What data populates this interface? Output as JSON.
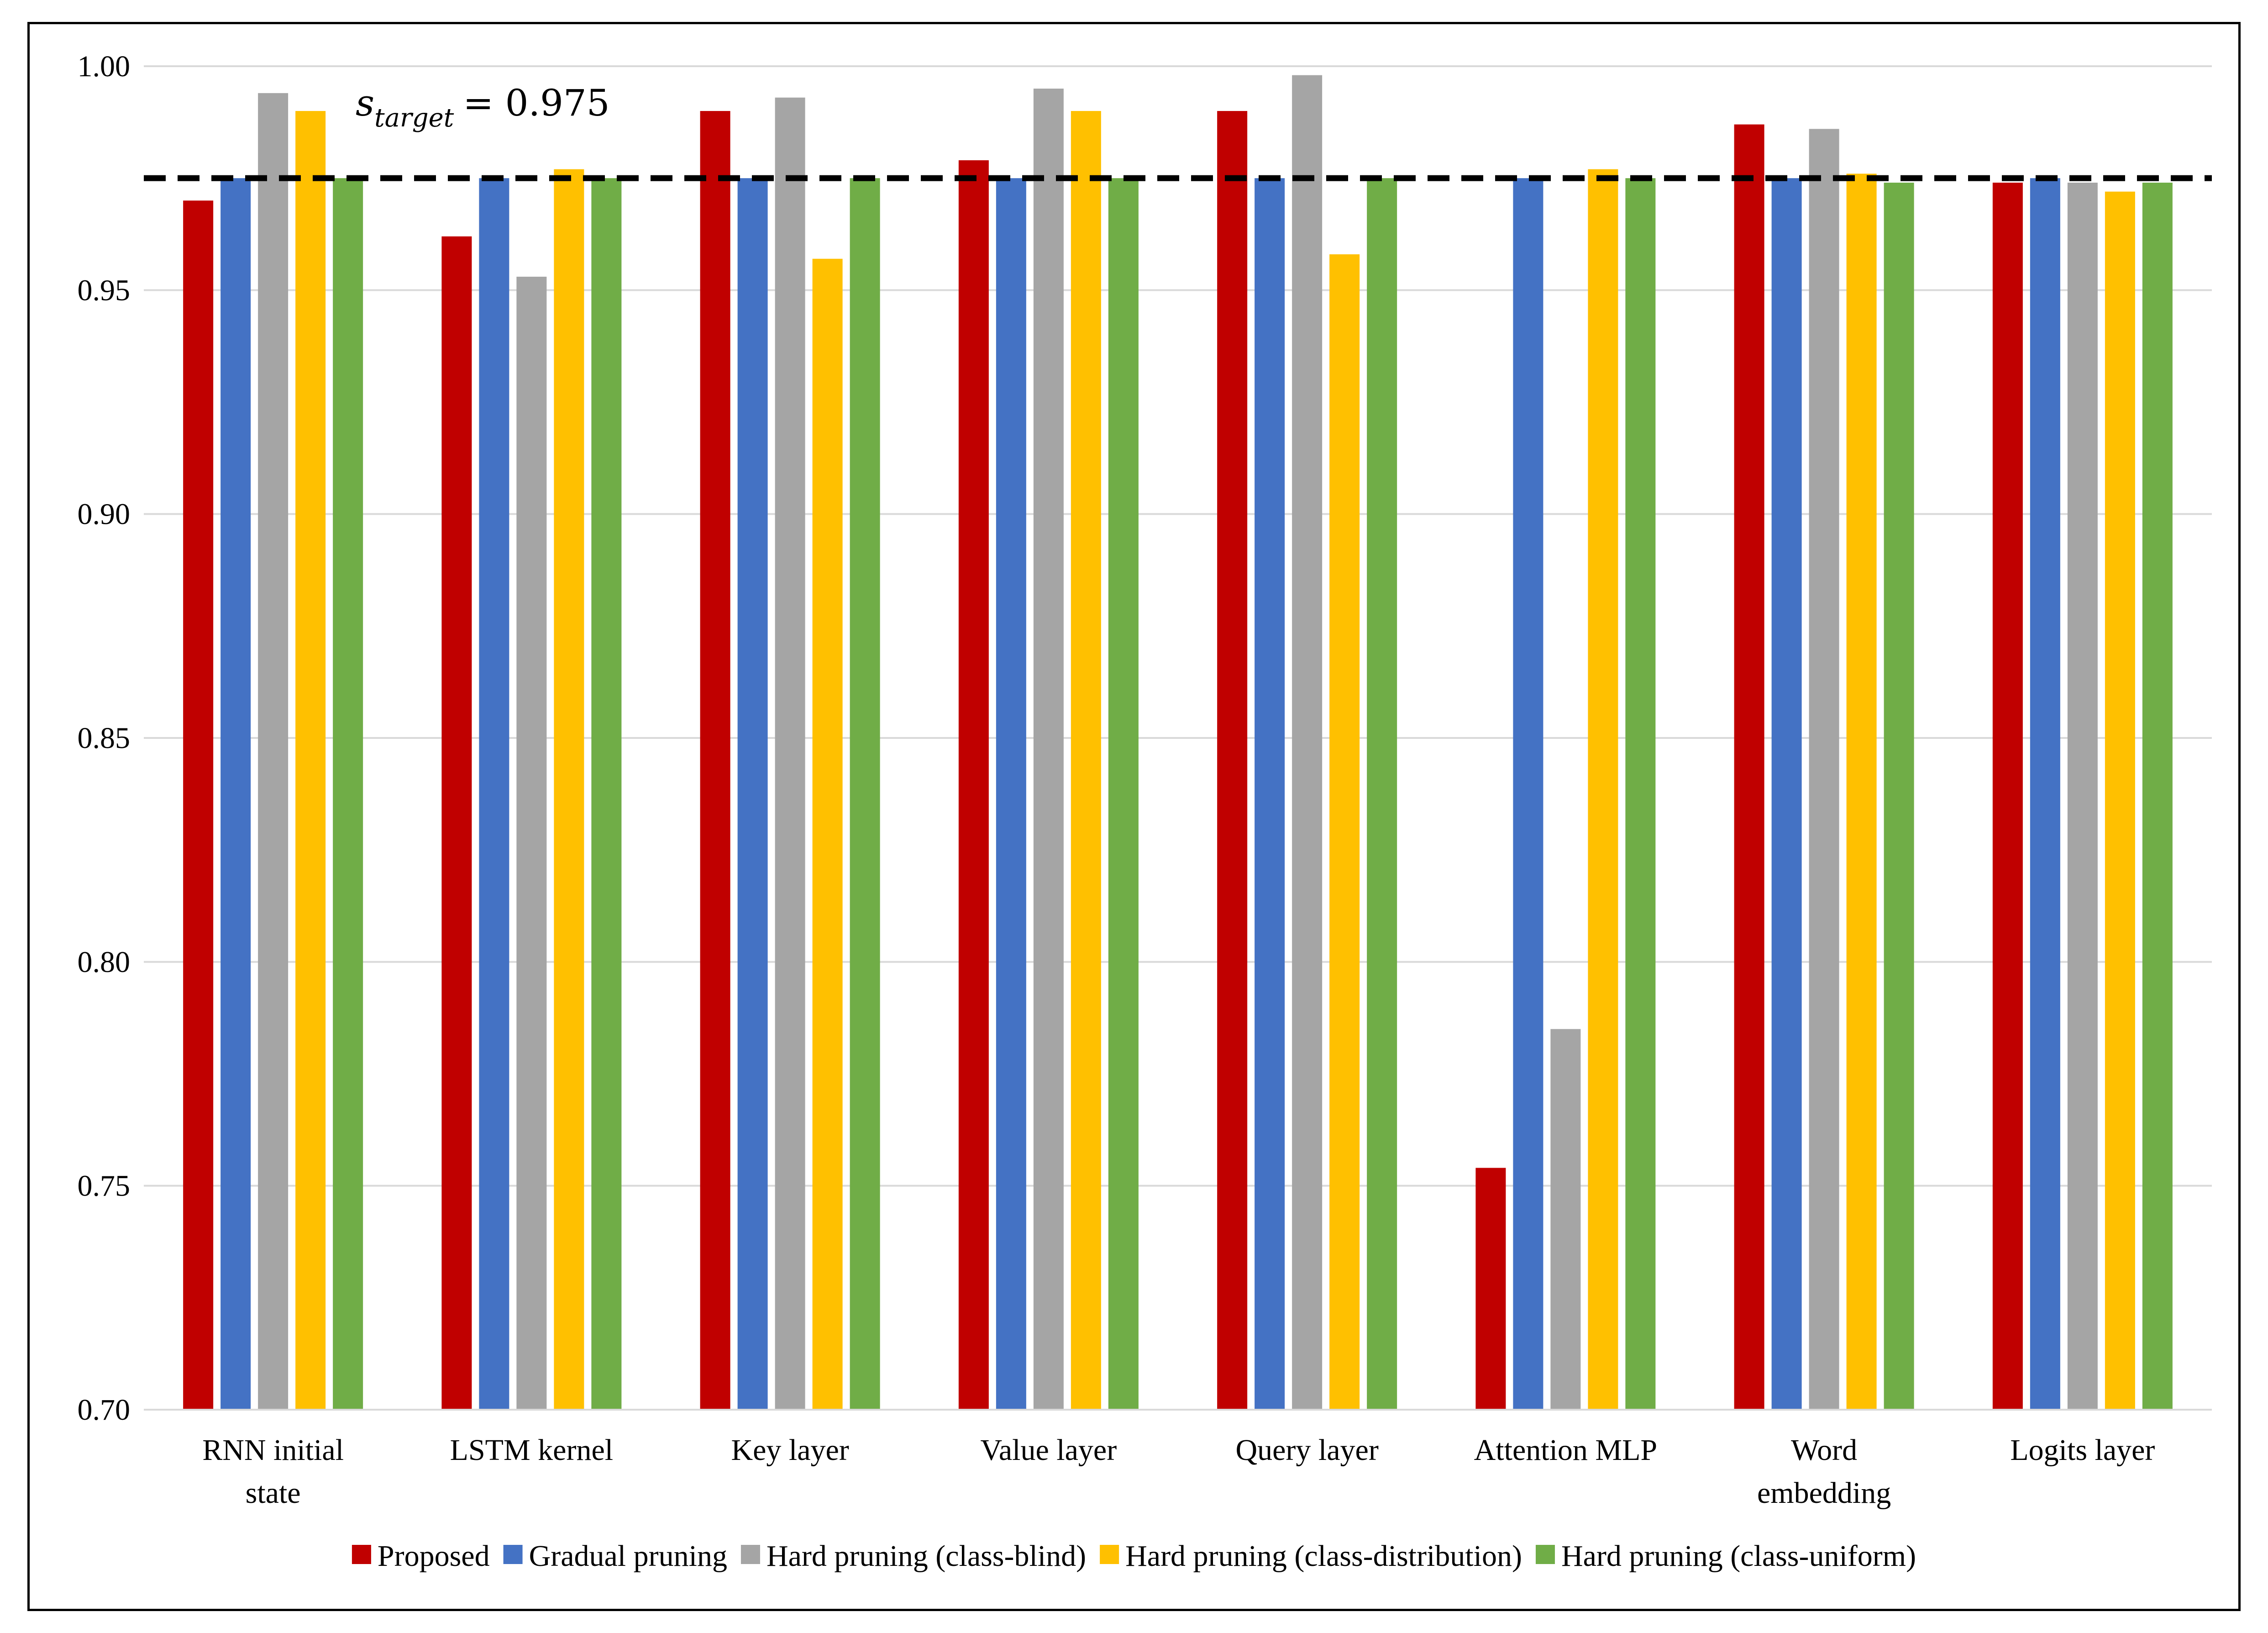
{
  "chart_data": {
    "type": "bar",
    "title": "",
    "xlabel": "",
    "ylabel": "",
    "ylim": [
      0.7,
      1.0
    ],
    "yticks": [
      "0.70",
      "0.75",
      "0.80",
      "0.85",
      "0.90",
      "0.95",
      "1.00"
    ],
    "grid": true,
    "legend_position": "bottom",
    "categories": [
      [
        "RNN initial",
        "state"
      ],
      [
        "LSTM kernel"
      ],
      [
        "Key layer"
      ],
      [
        "Value layer"
      ],
      [
        "Query layer"
      ],
      [
        "Attention MLP"
      ],
      [
        "Word",
        "embedding"
      ],
      [
        "Logits layer"
      ]
    ],
    "series": [
      {
        "name": "Proposed",
        "color": "#C00000",
        "values": [
          0.97,
          0.962,
          0.99,
          0.979,
          0.99,
          0.754,
          0.987,
          0.974
        ]
      },
      {
        "name": "Gradual pruning",
        "color": "#4472C4",
        "values": [
          0.975,
          0.975,
          0.975,
          0.975,
          0.975,
          0.975,
          0.975,
          0.975
        ]
      },
      {
        "name": "Hard pruning (class-blind)",
        "color": "#A5A5A5",
        "values": [
          0.994,
          0.953,
          0.993,
          0.995,
          0.998,
          0.785,
          0.986,
          0.974
        ]
      },
      {
        "name": "Hard pruning (class-distribution)",
        "color": "#FFC000",
        "values": [
          0.99,
          0.977,
          0.957,
          0.99,
          0.958,
          0.977,
          0.976,
          0.972
        ]
      },
      {
        "name": "Hard pruning (class-uniform)",
        "color": "#70AD47",
        "values": [
          0.975,
          0.975,
          0.975,
          0.975,
          0.975,
          0.975,
          0.974,
          0.974
        ]
      }
    ],
    "reference_line": {
      "value": 0.975,
      "label_symbol": "s",
      "label_subscript": "target",
      "label_value": "= 0.975",
      "style": "dashed",
      "color": "#000000"
    }
  }
}
